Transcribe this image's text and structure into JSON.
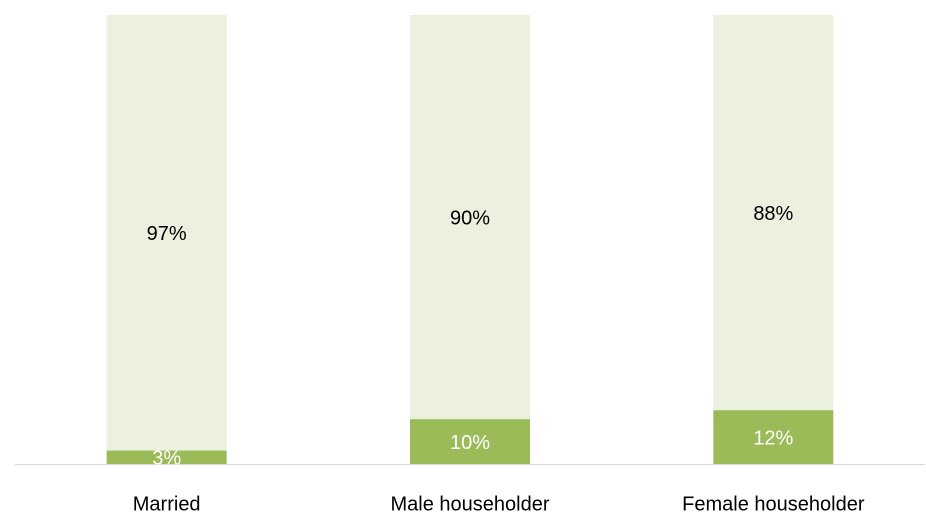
{
  "chart_data": {
    "type": "stacked_bar",
    "categories": [
      "Married",
      "Male householder",
      "Female householder"
    ],
    "series": [
      {
        "color": "#9bbb59",
        "label_color": "#ffffff",
        "values": [
          3,
          10,
          12
        ],
        "value_labels": [
          "3%",
          "10%",
          "12%"
        ]
      },
      {
        "color": "#ebf1de",
        "label_color": "#000000",
        "values": [
          97,
          90,
          88
        ],
        "value_labels": [
          "97%",
          "90%",
          "88%"
        ]
      }
    ],
    "ylim": [
      0,
      100
    ]
  }
}
